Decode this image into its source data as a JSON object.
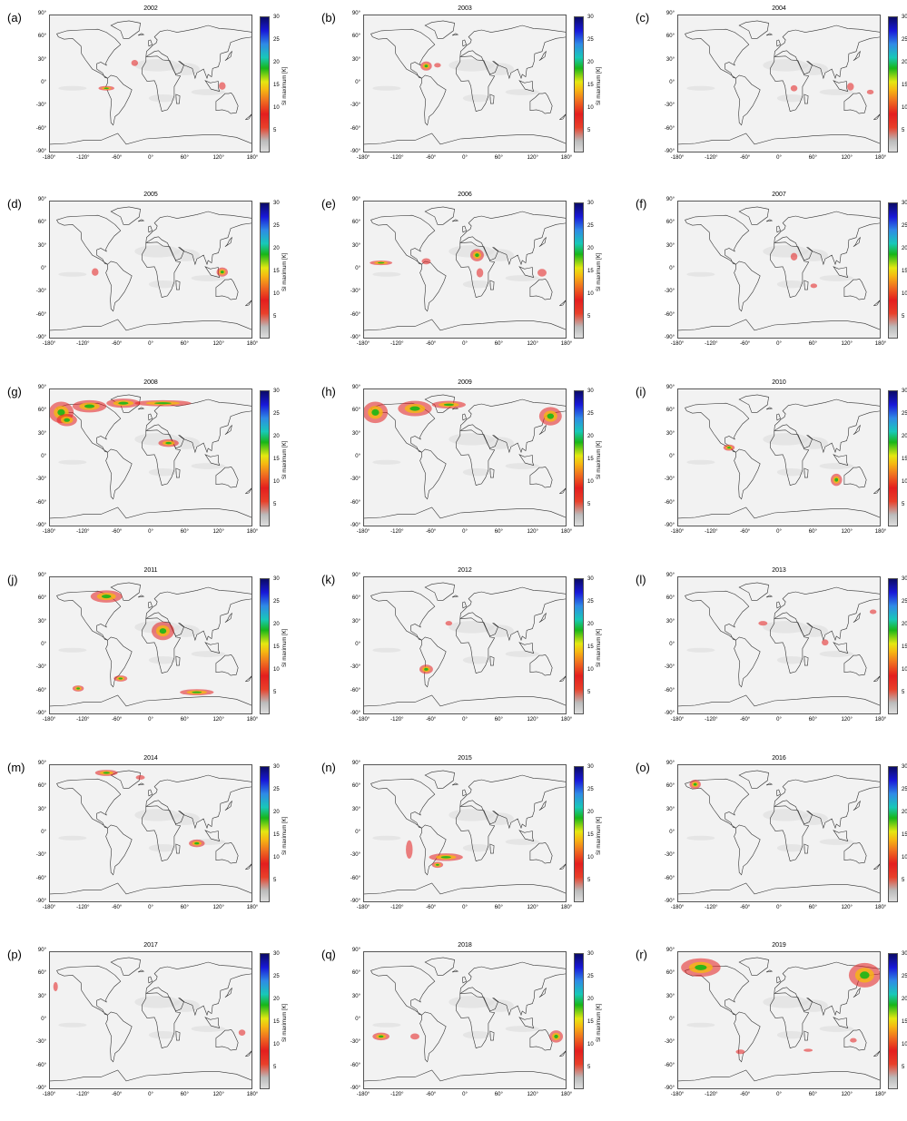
{
  "panels": [
    {
      "letter": "(a)",
      "year": "2002"
    },
    {
      "letter": "(b)",
      "year": "2003"
    },
    {
      "letter": "(c)",
      "year": "2004"
    },
    {
      "letter": "(d)",
      "year": "2005"
    },
    {
      "letter": "(e)",
      "year": "2006"
    },
    {
      "letter": "(f)",
      "year": "2007"
    },
    {
      "letter": "(g)",
      "year": "2008"
    },
    {
      "letter": "(h)",
      "year": "2009"
    },
    {
      "letter": "(i)",
      "year": "2010"
    },
    {
      "letter": "(j)",
      "year": "2011"
    },
    {
      "letter": "(k)",
      "year": "2012"
    },
    {
      "letter": "(l)",
      "year": "2013"
    },
    {
      "letter": "(m)",
      "year": "2014"
    },
    {
      "letter": "(n)",
      "year": "2015"
    },
    {
      "letter": "(o)",
      "year": "2016"
    },
    {
      "letter": "(p)",
      "year": "2017"
    },
    {
      "letter": "(q)",
      "year": "2018"
    },
    {
      "letter": "(r)",
      "year": "2019"
    }
  ],
  "x_ticks": [
    "-180°",
    "-120°",
    "-60°",
    "0°",
    "60°",
    "120°",
    "180°"
  ],
  "y_ticks": [
    "90°",
    "60°",
    "30°",
    "0°",
    "-30°",
    "-60°",
    "-90°"
  ],
  "colorbar": {
    "label": "SI maximum [K]",
    "ticks": [
      "30",
      "25",
      "20",
      "15",
      "10",
      "5"
    ],
    "range": [
      0,
      30
    ],
    "colors": [
      "#dddddd",
      "#e41e1e",
      "#f6b812",
      "#18b618",
      "#2f8ae6",
      "#0b0b66"
    ]
  },
  "map": {
    "background_color": "#f2f2f2",
    "coastline_color": "#333333",
    "hotspot_colors": [
      "#e41e1e",
      "#f07020",
      "#f6b812",
      "#18b618",
      "#1818d8"
    ]
  }
}
